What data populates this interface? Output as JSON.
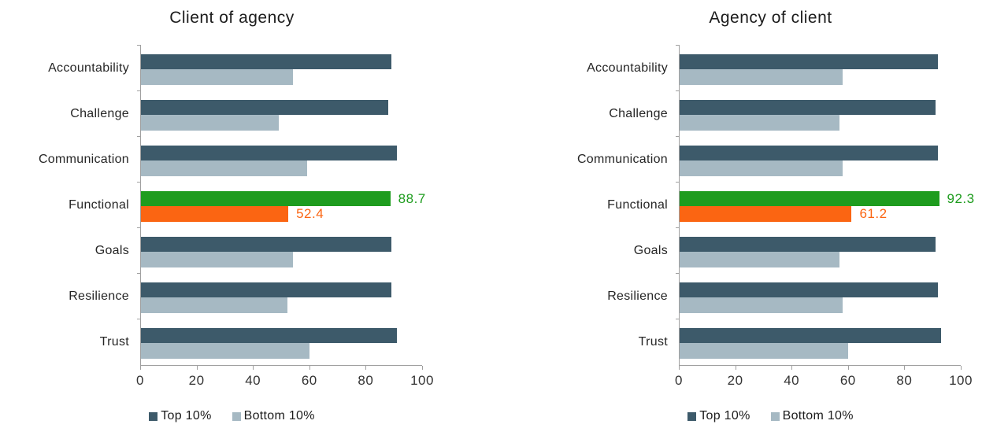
{
  "colors": {
    "top_series": "#3d5a6a",
    "bottom_series": "#a6b9c3",
    "highlight_top": "#1e9c1e",
    "highlight_bottom": "#fb6512",
    "axis_line": "#a0a0a0"
  },
  "axis": {
    "min": 0,
    "max": 100,
    "ticks": [
      0,
      20,
      40,
      60,
      80,
      100
    ]
  },
  "chart_data": [
    {
      "type": "bar",
      "orientation": "horizontal",
      "title": "Client of agency",
      "categories": [
        "Accountability",
        "Challenge",
        "Communication",
        "Functional",
        "Goals",
        "Resilience",
        "Trust"
      ],
      "series": [
        {
          "name": "Top 10%",
          "values": [
            89,
            88,
            91,
            88.7,
            89,
            89,
            91
          ]
        },
        {
          "name": "Bottom 10%",
          "values": [
            54,
            49,
            59,
            52.4,
            54,
            52,
            60
          ]
        }
      ],
      "highlight_category": "Functional",
      "data_labels": {
        "Functional": {
          "top": "88.7",
          "bottom": "52.4"
        }
      },
      "xlim": [
        0,
        100
      ],
      "grid": false,
      "legend_position": "bottom"
    },
    {
      "type": "bar",
      "orientation": "horizontal",
      "title": "Agency of client",
      "categories": [
        "Accountability",
        "Challenge",
        "Communication",
        "Functional",
        "Goals",
        "Resilience",
        "Trust"
      ],
      "series": [
        {
          "name": "Top 10%",
          "values": [
            92,
            91,
            92,
            92.3,
            91,
            92,
            93
          ]
        },
        {
          "name": "Bottom 10%",
          "values": [
            58,
            57,
            58,
            61.2,
            57,
            58,
            60
          ]
        }
      ],
      "highlight_category": "Functional",
      "data_labels": {
        "Functional": {
          "top": "92.3",
          "bottom": "61.2"
        }
      },
      "xlim": [
        0,
        100
      ],
      "grid": false,
      "legend_position": "bottom"
    }
  ]
}
